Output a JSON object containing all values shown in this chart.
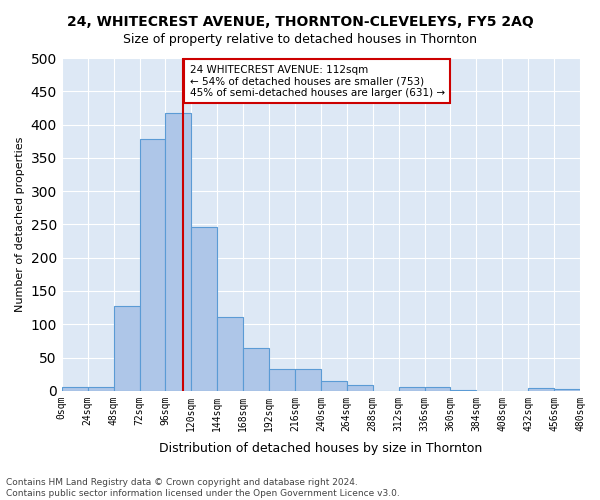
{
  "title": "24, WHITECREST AVENUE, THORNTON-CLEVELEYS, FY5 2AQ",
  "subtitle": "Size of property relative to detached houses in Thornton",
  "xlabel": "Distribution of detached houses by size in Thornton",
  "ylabel": "Number of detached properties",
  "footer_line1": "Contains HM Land Registry data © Crown copyright and database right 2024.",
  "footer_line2": "Contains public sector information licensed under the Open Government Licence v3.0.",
  "bar_edges": [
    0,
    24,
    48,
    72,
    96,
    120,
    144,
    168,
    192,
    216,
    240,
    264,
    288,
    312,
    336,
    360,
    384,
    408,
    432,
    456,
    480
  ],
  "bar_heights": [
    5,
    5,
    128,
    378,
    418,
    246,
    111,
    65,
    32,
    32,
    14,
    9,
    0,
    6,
    6,
    1,
    0,
    0,
    4,
    2
  ],
  "bar_color": "#aec6e8",
  "bar_edge_color": "#5b9bd5",
  "property_size": 112,
  "vline_color": "#cc0000",
  "annotation_text": "24 WHITECREST AVENUE: 112sqm\n← 54% of detached houses are smaller (753)\n45% of semi-detached houses are larger (631) →",
  "annotation_box_color": "#ffffff",
  "annotation_box_edge": "#cc0000",
  "ylim": [
    0,
    500
  ],
  "bg_color": "#dde8f5",
  "tick_labels": [
    "0sqm",
    "24sqm",
    "48sqm",
    "72sqm",
    "96sqm",
    "120sqm",
    "144sqm",
    "168sqm",
    "192sqm",
    "216sqm",
    "240sqm",
    "264sqm",
    "288sqm",
    "312sqm",
    "336sqm",
    "360sqm",
    "384sqm",
    "408sqm",
    "432sqm",
    "456sqm",
    "480sqm"
  ]
}
